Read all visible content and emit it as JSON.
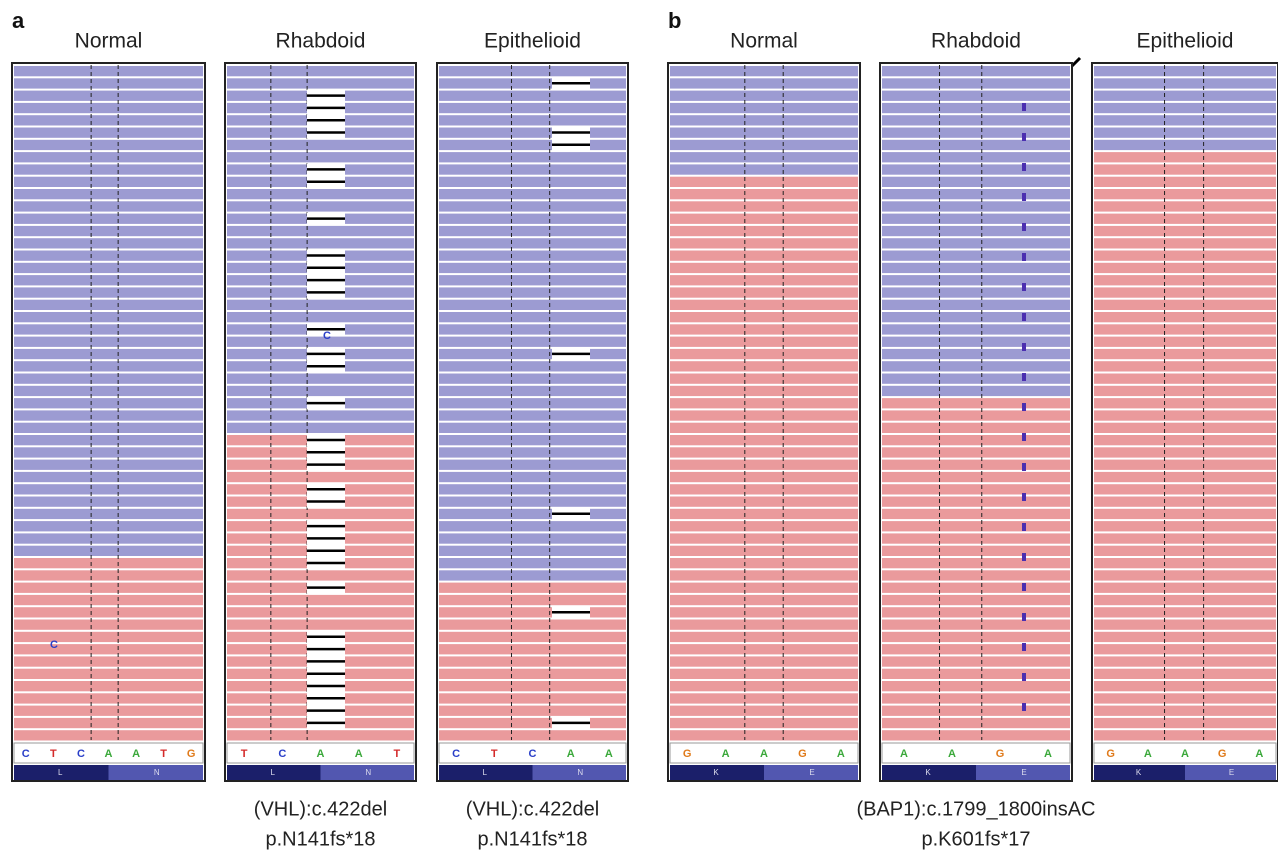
{
  "panels": [
    {
      "label": "a",
      "tracks": [
        {
          "title": "Normal",
          "bases": [
            "C",
            "T",
            "C",
            "A",
            "A",
            "T",
            "G"
          ],
          "aminoacids": [
            "L",
            "N"
          ],
          "mismatch": "C"
        },
        {
          "title": "Rhabdoid",
          "bases": [
            "T",
            "C",
            "A",
            "A",
            "T"
          ],
          "aminoacids": [
            "L",
            "N"
          ],
          "mismatch": "C",
          "caption": [
            "(VHL):c.422del",
            "p.N141fs*18"
          ]
        },
        {
          "title": "Epithelioid",
          "bases": [
            "C",
            "T",
            "C",
            "A",
            "A"
          ],
          "aminoacids": [
            "L",
            "N"
          ],
          "caption": [
            "(VHL):c.422del",
            "p.N141fs*18"
          ]
        }
      ]
    },
    {
      "label": "b",
      "tracks": [
        {
          "title": "Normal",
          "bases": [
            "G",
            "A",
            "A",
            "G",
            "A"
          ],
          "aminoacids": [
            "K",
            "E"
          ]
        },
        {
          "title": "Rhabdoid",
          "bases": [
            "A",
            "A",
            "G",
            "A"
          ],
          "aminoacids": [
            "K",
            "E"
          ]
        },
        {
          "title": "Epithelioid",
          "bases": [
            "G",
            "A",
            "A",
            "G",
            "A"
          ],
          "aminoacids": [
            "K",
            "E"
          ]
        }
      ],
      "caption": [
        "(BAP1):c.1799_1800insAC",
        "p.K601fs*17"
      ]
    }
  ]
}
